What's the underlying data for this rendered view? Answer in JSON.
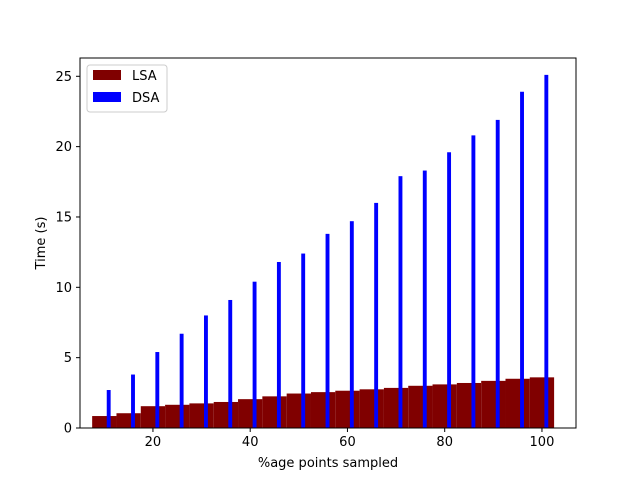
{
  "chart_data": {
    "type": "bar",
    "title": "",
    "xlabel": "%age points sampled",
    "ylabel": "Time (s)",
    "xlim": [
      5,
      107
    ],
    "ylim": [
      0,
      26.3
    ],
    "xticks": [
      20,
      40,
      60,
      80,
      100
    ],
    "yticks": [
      0,
      5,
      10,
      15,
      20,
      25
    ],
    "legend": "top-left",
    "grid": false,
    "x": [
      10,
      15,
      20,
      25,
      30,
      35,
      40,
      45,
      50,
      55,
      60,
      65,
      70,
      75,
      80,
      85,
      90,
      95,
      100
    ],
    "series": [
      {
        "name": "LSA",
        "color": "#800000",
        "bar_width": 5,
        "offset": 0,
        "values": [
          0.85,
          1.05,
          1.55,
          1.65,
          1.75,
          1.85,
          2.05,
          2.25,
          2.45,
          2.55,
          2.65,
          2.75,
          2.85,
          3.0,
          3.1,
          3.2,
          3.35,
          3.5,
          3.6
        ]
      },
      {
        "name": "DSA",
        "color": "#0000ff",
        "bar_width": 0.8,
        "offset": 0.9,
        "values": [
          2.7,
          3.8,
          5.4,
          6.7,
          8.0,
          9.1,
          10.4,
          11.8,
          12.4,
          13.8,
          14.7,
          16.0,
          17.9,
          18.3,
          19.6,
          20.8,
          21.9,
          23.9,
          25.1
        ]
      }
    ]
  }
}
